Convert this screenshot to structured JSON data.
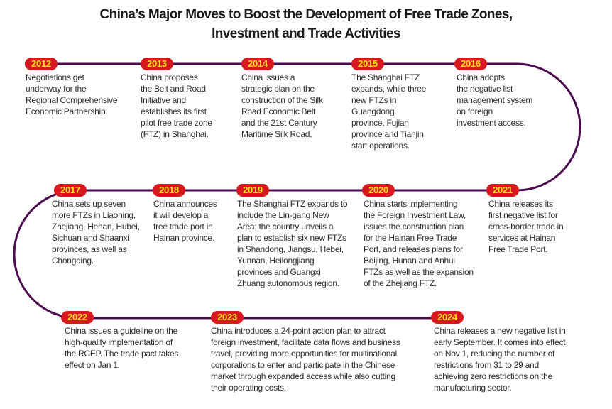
{
  "title": {
    "line1": "China’s Major Moves to Boost the Development of Free Trade Zones,",
    "line2": "Investment and Trade Activities"
  },
  "colors": {
    "timeline": "#4b0d4f",
    "badge_bg": "#d7191f",
    "badge_text": "#ffe11a"
  },
  "events": [
    {
      "year": "2012",
      "text": "Negotiations get\nunderway for the\nRegional Comprehensive\nEconomic Partnership."
    },
    {
      "year": "2013",
      "text": "China proposes\nthe Belt and Road\nInitiative and\nestablishes its first\npilot free trade zone\n(FTZ) in Shanghai."
    },
    {
      "year": "2014",
      "text": "China issues a\nstrategic plan on the\nconstruction of the Silk\nRoad Economic Belt\nand the 21st Century\nMaritime Silk Road."
    },
    {
      "year": "2015",
      "text": "The Shanghai FTZ\nexpands, while three\nnew FTZs in\nGuangdong\nprovince, Fujian\nprovince and Tianjin\nstart operations."
    },
    {
      "year": "2016",
      "text": "China adopts\nthe negative list\nmanagement system\non foreign\ninvestment access."
    },
    {
      "year": "2017",
      "text": "China sets up seven\nmore FTZs in Liaoning,\nZhejiang, Henan, Hubei,\nSichuan and Shaanxi\nprovinces, as well as\nChongqing."
    },
    {
      "year": "2018",
      "text": "China announces\nit will develop a\nfree trade port in\nHainan province."
    },
    {
      "year": "2019",
      "text": "The Shanghai FTZ expands to\ninclude the Lin-gang New\nArea; the country unveils a\nplan to establish six new FTZs\nin Shandong, Jiangsu, Hebei,\nYunnan, Heilongjiang\nprovinces and Guangxi\nZhuang autonomous region."
    },
    {
      "year": "2020",
      "text": "China starts implementing\nthe Foreign Investment Law,\nissues the construction plan\nfor the Hainan Free Trade\nPort, and releases plans for\nBeijing, Hunan and Anhui\nFTZs as well as the expansion\nof the Zhejiang FTZ."
    },
    {
      "year": "2021",
      "text": "China releases its\nfirst negative list for\ncross-border trade in\nservices at Hainan\nFree Trade Port."
    },
    {
      "year": "2022",
      "text": "China issues a guideline on the\nhigh-quality implementation of\nthe RCEP. The trade pact takes\neffect on Jan 1."
    },
    {
      "year": "2023",
      "text": "China introduces a 24-point action plan to attract\nforeign investment, facilitate data flows and business\ntravel, providing more opportunities for multinational\ncorporations to enter and participate in the Chinese\nmarket through expanded access while also cutting\ntheir operating costs."
    },
    {
      "year": "2024",
      "text": "China releases a new negative list in\nearly September. It comes into effect\non Nov 1, reducing the number of\nrestrictions from 31 to 29 and\nachieving zero restrictions on the\nmanufacturing sector."
    }
  ]
}
